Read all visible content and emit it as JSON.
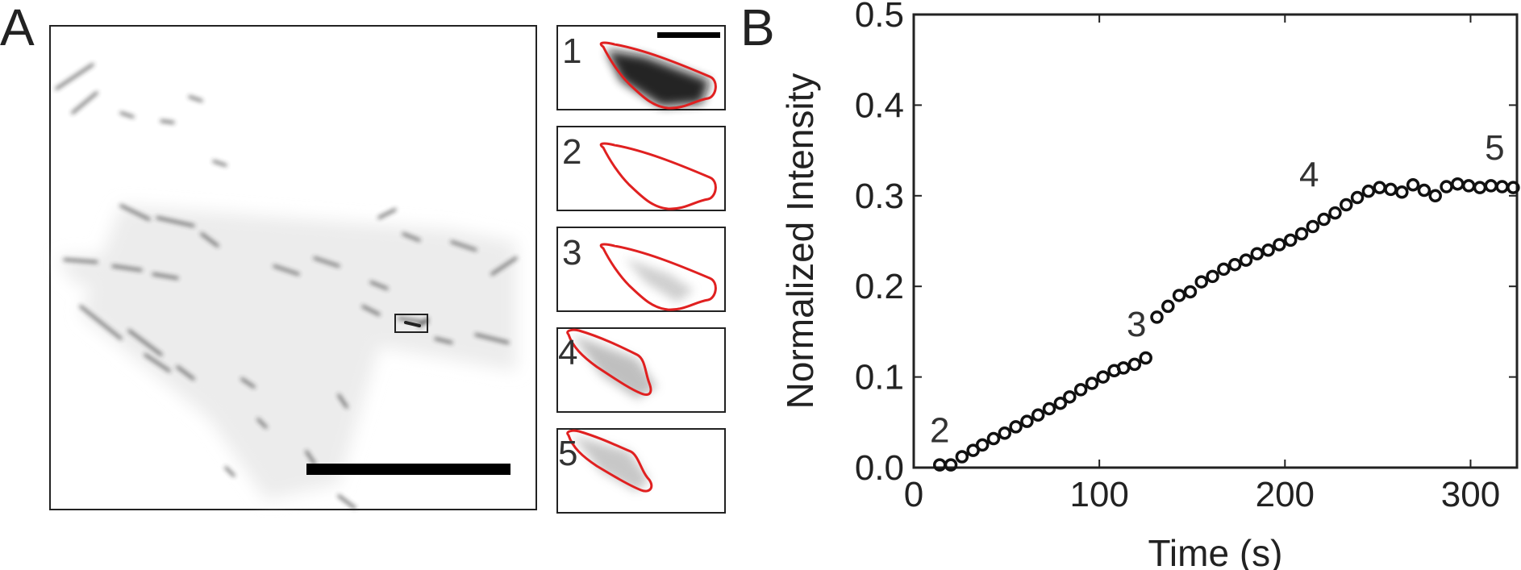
{
  "panel_a": {
    "letter": "A",
    "insets": [
      {
        "number": "1"
      },
      {
        "number": "2"
      },
      {
        "number": "3"
      },
      {
        "number": "4"
      },
      {
        "number": "5"
      }
    ]
  },
  "chart_data": {
    "type": "scatter",
    "panel_letter": "B",
    "title": "",
    "xlabel": "Time (s)",
    "ylabel": "Normalized Intensity",
    "xlim": [
      0,
      325
    ],
    "ylim": [
      0,
      0.5
    ],
    "xticks": [
      0,
      100,
      200,
      300
    ],
    "xtick_labels": [
      "0",
      "100",
      "200",
      "300"
    ],
    "yticks": [
      0,
      0.1,
      0.2,
      0.3,
      0.4,
      0.5
    ],
    "ytick_labels": [
      "0.0",
      "0.1",
      "0.2",
      "0.3",
      "0.4",
      "0.5"
    ],
    "grid": false,
    "marker": "open-circle",
    "series": [
      {
        "name": "intensity",
        "x": [
          14,
          20,
          26,
          32,
          37,
          43,
          49,
          55,
          61,
          67,
          73,
          79,
          84,
          90,
          96,
          102,
          108,
          113,
          119,
          125,
          131,
          137,
          143,
          149,
          155,
          161,
          167,
          173,
          179,
          185,
          191,
          197,
          203,
          209,
          215,
          221,
          227,
          233,
          239,
          245,
          251,
          257,
          263,
          269,
          275,
          281,
          287,
          293,
          299,
          305,
          311,
          317,
          323
        ],
        "y": [
          0.003,
          0.003,
          0.012,
          0.019,
          0.025,
          0.032,
          0.038,
          0.045,
          0.051,
          0.058,
          0.065,
          0.071,
          0.078,
          0.086,
          0.093,
          0.1,
          0.107,
          0.11,
          0.114,
          0.121,
          0.166,
          0.178,
          0.19,
          0.194,
          0.205,
          0.211,
          0.219,
          0.224,
          0.229,
          0.236,
          0.24,
          0.246,
          0.251,
          0.258,
          0.266,
          0.274,
          0.281,
          0.29,
          0.298,
          0.305,
          0.309,
          0.307,
          0.304,
          0.312,
          0.306,
          0.3,
          0.31,
          0.313,
          0.311,
          0.309,
          0.311,
          0.31,
          0.309
        ]
      }
    ],
    "annotations": [
      {
        "text": "2",
        "x": 14,
        "y": 0.028
      },
      {
        "text": "3",
        "x": 120,
        "y": 0.145
      },
      {
        "text": "4",
        "x": 213,
        "y": 0.31
      },
      {
        "text": "5",
        "x": 313,
        "y": 0.34
      }
    ]
  }
}
